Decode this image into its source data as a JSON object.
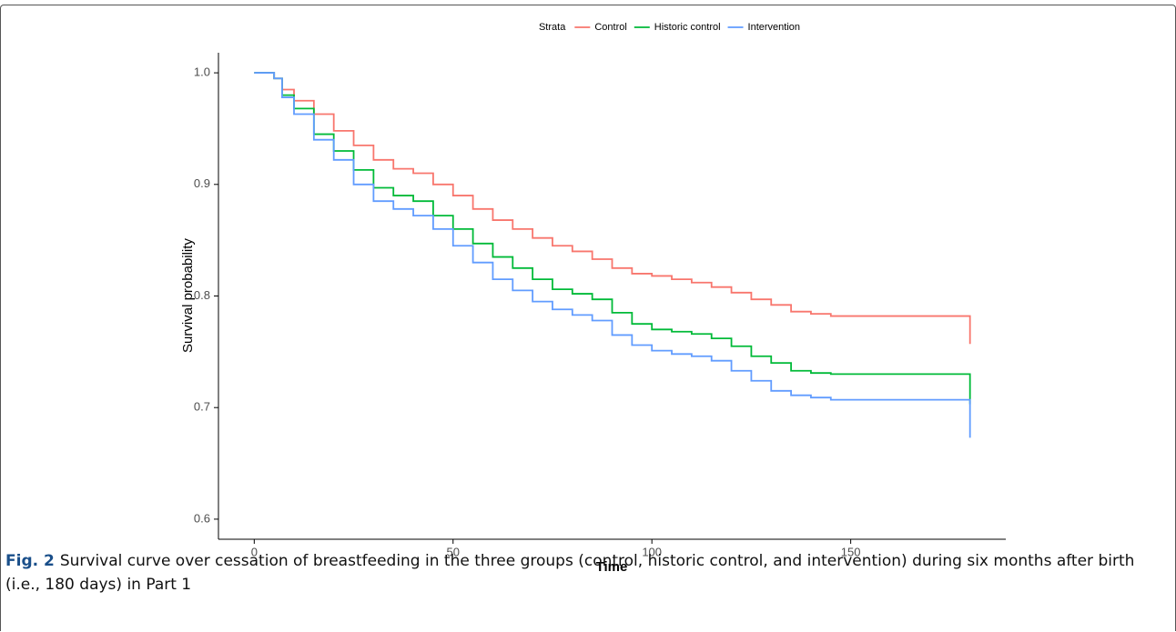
{
  "chart_data": {
    "type": "line",
    "step": true,
    "x_label": "Time",
    "y_label": "Survival probability",
    "legend_title": "Strata",
    "legend_position": "top",
    "x": [
      0,
      5,
      7,
      10,
      15,
      20,
      25,
      30,
      35,
      40,
      45,
      50,
      55,
      60,
      65,
      70,
      75,
      80,
      85,
      90,
      95,
      100,
      105,
      110,
      115,
      120,
      125,
      130,
      135,
      140,
      145,
      150,
      160,
      170,
      179,
      180
    ],
    "series": [
      {
        "name": "Control",
        "color": "#f8766d",
        "values": [
          1.0,
          0.995,
          0.985,
          0.975,
          0.963,
          0.948,
          0.935,
          0.922,
          0.914,
          0.91,
          0.9,
          0.89,
          0.878,
          0.868,
          0.86,
          0.852,
          0.845,
          0.84,
          0.833,
          0.825,
          0.82,
          0.818,
          0.815,
          0.812,
          0.808,
          0.803,
          0.797,
          0.792,
          0.786,
          0.784,
          0.782,
          0.782,
          0.782,
          0.782,
          0.782,
          0.757
        ]
      },
      {
        "name": "Historic control",
        "color": "#00ba38",
        "values": [
          1.0,
          0.995,
          0.98,
          0.968,
          0.945,
          0.93,
          0.913,
          0.897,
          0.89,
          0.885,
          0.872,
          0.86,
          0.847,
          0.835,
          0.825,
          0.815,
          0.806,
          0.802,
          0.797,
          0.785,
          0.775,
          0.77,
          0.768,
          0.766,
          0.762,
          0.755,
          0.746,
          0.74,
          0.733,
          0.731,
          0.73,
          0.73,
          0.73,
          0.73,
          0.73,
          0.703
        ]
      },
      {
        "name": "Intervention",
        "color": "#619cff",
        "values": [
          1.0,
          0.995,
          0.978,
          0.963,
          0.94,
          0.922,
          0.9,
          0.885,
          0.878,
          0.872,
          0.86,
          0.845,
          0.83,
          0.815,
          0.805,
          0.795,
          0.788,
          0.783,
          0.778,
          0.765,
          0.756,
          0.751,
          0.748,
          0.746,
          0.742,
          0.733,
          0.724,
          0.715,
          0.711,
          0.709,
          0.707,
          0.707,
          0.707,
          0.707,
          0.707,
          0.673
        ]
      }
    ],
    "xlim": [
      -9,
      189
    ],
    "xticks": [
      0,
      50,
      100,
      150
    ],
    "ylim": [
      0.582,
      1.018
    ],
    "yticks": [
      {
        "value": 0.6,
        "label": "0.6"
      },
      {
        "value": 0.7,
        "label": "0.7"
      },
      {
        "value": 0.8,
        "label": "0.8"
      },
      {
        "value": 0.9,
        "label": "0.9"
      },
      {
        "value": 1.0,
        "label": "1.0"
      }
    ],
    "grid": false
  },
  "caption": {
    "label": "Fig. 2",
    "text": "Survival curve over cessation of breastfeeding in the three groups (control, historic control, and intervention) during six months after birth (i.e., 180 days) in Part 1"
  }
}
